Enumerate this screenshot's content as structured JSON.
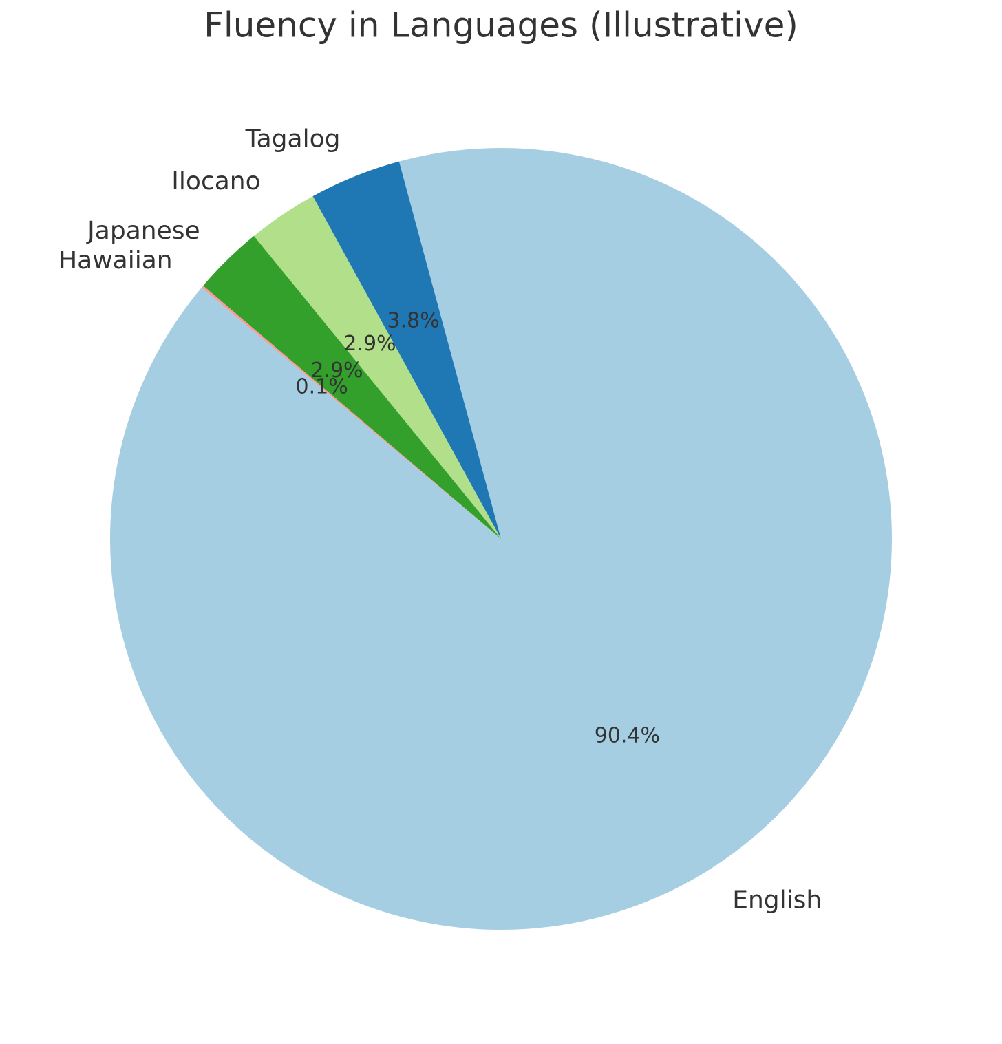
{
  "chart_data": {
    "type": "pie",
    "title": "Fluency in Languages (Illustrative)",
    "categories": [
      "English",
      "Tagalog",
      "Ilocano",
      "Japanese",
      "Hawaiian"
    ],
    "values": [
      90.4,
      3.8,
      2.9,
      2.9,
      0.1
    ],
    "value_labels": [
      "90.4%",
      "3.8%",
      "2.9%",
      "2.9%",
      "0.1%"
    ],
    "colors": [
      "#a6cee3",
      "#1f78b4",
      "#b2df8a",
      "#33a02c",
      "#fb9a99"
    ],
    "startangle": 140
  }
}
